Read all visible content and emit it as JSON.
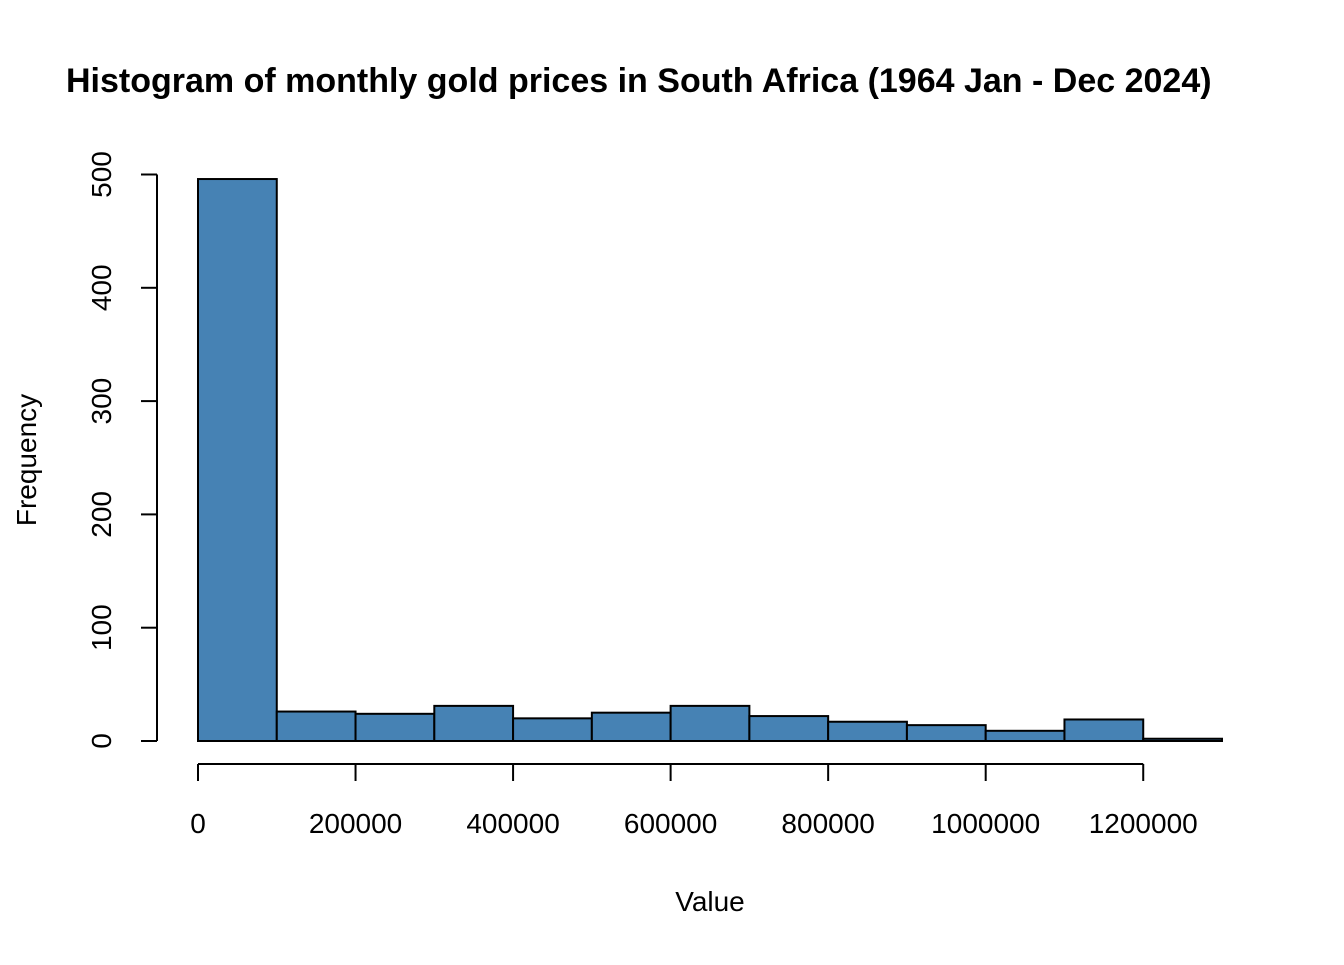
{
  "chart_data": {
    "type": "bar",
    "title": "Histogram of monthly gold prices in South Africa (1964 Jan - Dec 2024)",
    "xlabel": "Value",
    "ylabel": "Frequency",
    "bin_edges": [
      0,
      100000,
      200000,
      300000,
      400000,
      500000,
      600000,
      700000,
      800000,
      900000,
      1000000,
      1100000,
      1200000,
      1300000
    ],
    "values": [
      496,
      26,
      24,
      31,
      20,
      25,
      31,
      22,
      17,
      14,
      9,
      19,
      2
    ],
    "xlim": [
      0,
      1300000
    ],
    "ylim": [
      0,
      500
    ],
    "x_ticks": [
      0,
      200000,
      400000,
      600000,
      800000,
      1000000,
      1200000
    ],
    "x_tick_labels": [
      "0",
      "200000",
      "400000",
      "600000",
      "800000",
      "1000000",
      "1200000"
    ],
    "y_ticks": [
      0,
      100,
      200,
      300,
      400,
      500
    ],
    "y_tick_labels": [
      "0",
      "100",
      "200",
      "300",
      "400",
      "500"
    ],
    "bar_color": "#4682B4",
    "grid": false,
    "legend": "none"
  }
}
